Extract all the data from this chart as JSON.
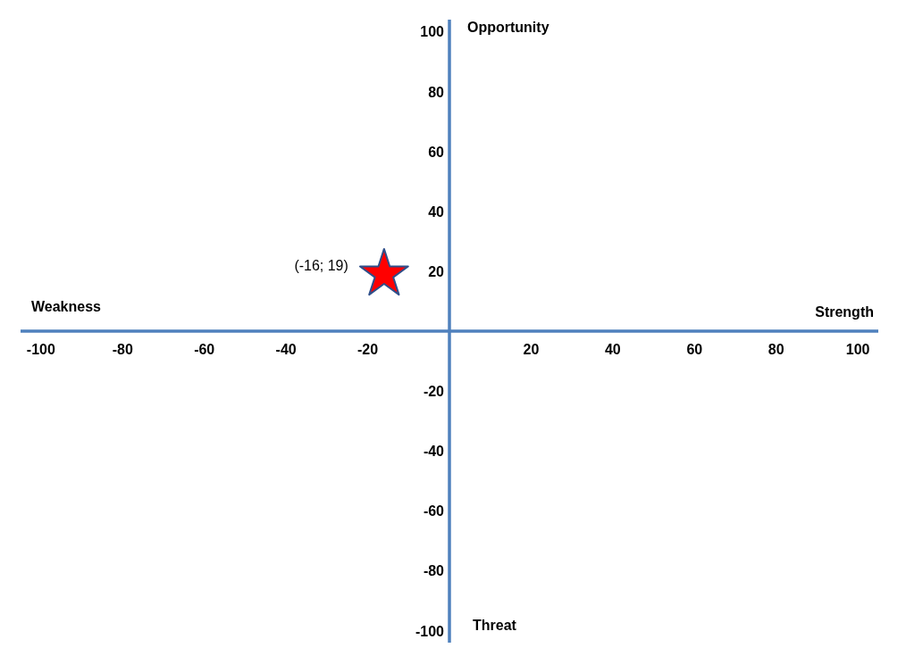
{
  "chart_data": {
    "type": "scatter",
    "xlabel": "Strength",
    "ylabel": "Opportunity",
    "annotations": [
      "Weakness",
      "Threat",
      {
        "text": "(-16; 19)",
        "x": -16,
        "y": 19
      }
    ],
    "xlim": [
      -105,
      105
    ],
    "ylim": [
      -104,
      104
    ],
    "xticks": [
      -100,
      -80,
      -60,
      -40,
      -20,
      20,
      40,
      60,
      80,
      100
    ],
    "yticks": [
      -100,
      -80,
      -60,
      -40,
      -20,
      20,
      40,
      60,
      80,
      100
    ],
    "marker": "star",
    "series": [
      {
        "x": [
          -16
        ],
        "values": [
          19
        ],
        "color": "#ff0000"
      }
    ]
  }
}
